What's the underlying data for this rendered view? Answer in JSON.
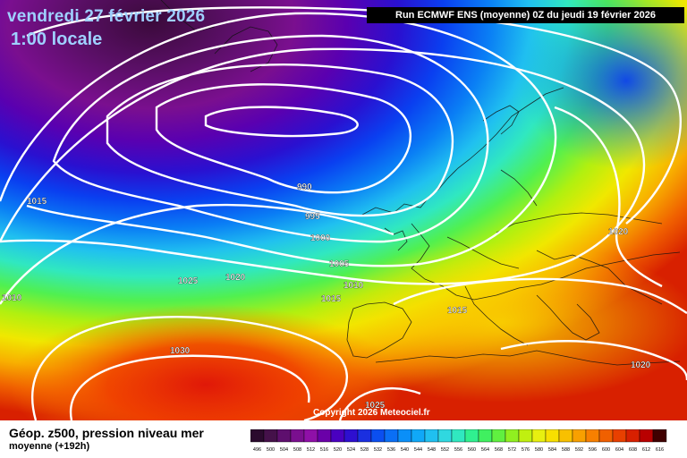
{
  "header": {
    "date": "vendredi 27 février 2026",
    "time": "1:00 locale",
    "run": "Run ECMWF ENS (moyenne) 0Z du jeudi 19 février 2026"
  },
  "map": {
    "copyright": "Copyright 2026 Meteociel.fr",
    "isobar_labels": [
      "990",
      "995",
      "1000",
      "1005",
      "1010",
      "1015",
      "1015",
      "1010",
      "1015",
      "1025",
      "1020",
      "1030",
      "1020",
      "1020",
      "1025"
    ]
  },
  "legend": {
    "title": "Géop. z500, pression niveau mer",
    "subtitle": "moyenne  (+192h)",
    "scale_values": [
      "496",
      "500",
      "504",
      "508",
      "512",
      "516",
      "520",
      "524",
      "528",
      "532",
      "536",
      "540",
      "544",
      "548",
      "552",
      "556",
      "560",
      "564",
      "568",
      "572",
      "576",
      "580",
      "584",
      "588",
      "592",
      "596",
      "600",
      "604",
      "608",
      "612",
      "616"
    ],
    "scale_colors": [
      "#2b0a2e",
      "#45114a",
      "#5e0f6e",
      "#7a0f8f",
      "#8f10a8",
      "#6a00a8",
      "#4a00c0",
      "#2e0fd0",
      "#1a2fe0",
      "#0b4ff0",
      "#0a6ff5",
      "#0a8ff8",
      "#10a8f8",
      "#20c0f0",
      "#30d8e0",
      "#30e8c0",
      "#30f090",
      "#40f060",
      "#60f040",
      "#90f020",
      "#c0f010",
      "#e8f010",
      "#f8e000",
      "#f8c000",
      "#f8a000",
      "#f88000",
      "#f06000",
      "#e84000",
      "#d82000",
      "#b80000",
      "#400000"
    ]
  }
}
